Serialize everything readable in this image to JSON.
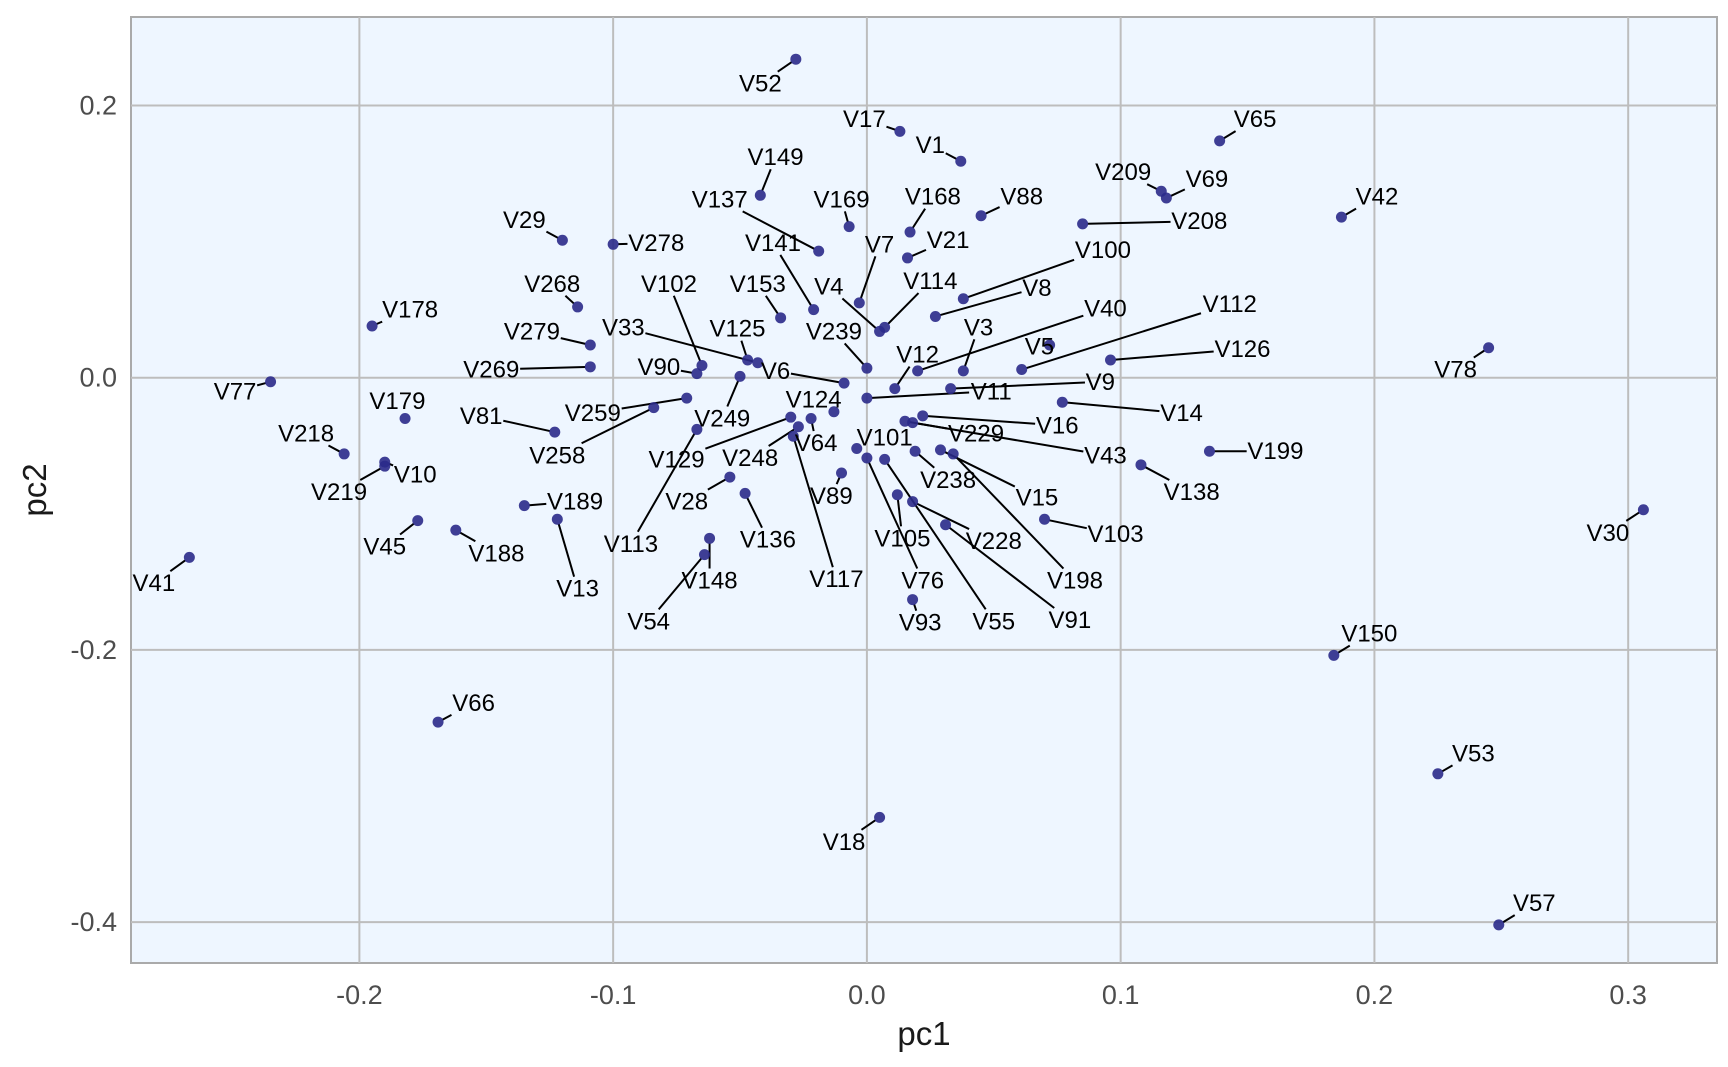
{
  "chart_data": {
    "type": "scatter",
    "xlabel": "pc1",
    "ylabel": "pc2",
    "xlim": [
      -0.29,
      0.335
    ],
    "ylim": [
      -0.43,
      0.265
    ],
    "xticks": [
      -0.2,
      -0.1,
      0.0,
      0.1,
      0.2,
      0.3
    ],
    "xtick_labels": [
      "-0.2",
      "-0.1",
      "0.0",
      "0.1",
      "0.2",
      "0.3"
    ],
    "yticks": [
      -0.4,
      -0.2,
      0.0,
      0.2
    ],
    "ytick_labels": [
      "-0.4",
      "-0.2",
      "0.0",
      "0.2"
    ],
    "grid": true,
    "colors": {
      "panel": "#eef6ff",
      "point": "#2a2a8a",
      "grid": "#bdbdbd",
      "border": "#aaaaaa",
      "leader": "#000000"
    },
    "points": [
      {
        "label": "V52",
        "x": -0.028,
        "y": 0.234,
        "lx": -0.042,
        "ly": 0.216
      },
      {
        "label": "V17",
        "x": 0.013,
        "y": 0.181,
        "lx": -0.001,
        "ly": 0.19
      },
      {
        "label": "V1",
        "x": 0.037,
        "y": 0.159,
        "lx": 0.025,
        "ly": 0.171
      },
      {
        "label": "V65",
        "x": 0.139,
        "y": 0.174,
        "lx": 0.153,
        "ly": 0.19
      },
      {
        "label": "V149",
        "x": -0.042,
        "y": 0.134,
        "lx": -0.036,
        "ly": 0.162
      },
      {
        "label": "V137",
        "x": -0.019,
        "y": 0.093,
        "lx": -0.058,
        "ly": 0.131
      },
      {
        "label": "V169",
        "x": -0.007,
        "y": 0.111,
        "lx": -0.01,
        "ly": 0.131
      },
      {
        "label": "V168",
        "x": 0.017,
        "y": 0.107,
        "lx": 0.026,
        "ly": 0.133
      },
      {
        "label": "V88",
        "x": 0.045,
        "y": 0.119,
        "lx": 0.061,
        "ly": 0.133
      },
      {
        "label": "V209",
        "x": 0.116,
        "y": 0.137,
        "lx": 0.101,
        "ly": 0.151
      },
      {
        "label": "V69",
        "x": 0.118,
        "y": 0.132,
        "lx": 0.134,
        "ly": 0.146
      },
      {
        "label": "V42",
        "x": 0.187,
        "y": 0.118,
        "lx": 0.201,
        "ly": 0.133
      },
      {
        "label": "V208",
        "x": 0.085,
        "y": 0.113,
        "lx": 0.131,
        "ly": 0.115
      },
      {
        "label": "V29",
        "x": -0.12,
        "y": 0.101,
        "lx": -0.135,
        "ly": 0.116
      },
      {
        "label": "V278",
        "x": -0.1,
        "y": 0.098,
        "lx": -0.083,
        "ly": 0.099
      },
      {
        "label": "V21",
        "x": 0.016,
        "y": 0.088,
        "lx": 0.032,
        "ly": 0.101
      },
      {
        "label": "V141",
        "x": -0.021,
        "y": 0.05,
        "lx": -0.037,
        "ly": 0.099
      },
      {
        "label": "V7",
        "x": -0.003,
        "y": 0.055,
        "lx": 0.005,
        "ly": 0.098
      },
      {
        "label": "V100",
        "x": 0.038,
        "y": 0.058,
        "lx": 0.093,
        "ly": 0.094
      },
      {
        "label": "V114",
        "x": 0.007,
        "y": 0.037,
        "lx": 0.025,
        "ly": 0.071
      },
      {
        "label": "V268",
        "x": -0.114,
        "y": 0.052,
        "lx": -0.124,
        "ly": 0.069
      },
      {
        "label": "V102",
        "x": -0.065,
        "y": 0.009,
        "lx": -0.078,
        "ly": 0.069
      },
      {
        "label": "V153",
        "x": -0.034,
        "y": 0.044,
        "lx": -0.043,
        "ly": 0.069
      },
      {
        "label": "V4",
        "x": 0.005,
        "y": 0.034,
        "lx": -0.015,
        "ly": 0.067
      },
      {
        "label": "V8",
        "x": 0.027,
        "y": 0.045,
        "lx": 0.067,
        "ly": 0.066
      },
      {
        "label": "V178",
        "x": -0.195,
        "y": 0.038,
        "lx": -0.18,
        "ly": 0.05
      },
      {
        "label": "V40",
        "x": 0.02,
        "y": 0.005,
        "lx": 0.094,
        "ly": 0.051
      },
      {
        "label": "V112",
        "x": 0.061,
        "y": 0.006,
        "lx": 0.143,
        "ly": 0.054
      },
      {
        "label": "V279",
        "x": -0.109,
        "y": 0.024,
        "lx": -0.132,
        "ly": 0.034
      },
      {
        "label": "V33",
        "x": -0.043,
        "y": 0.011,
        "lx": -0.096,
        "ly": 0.037
      },
      {
        "label": "V125",
        "x": -0.047,
        "y": 0.013,
        "lx": -0.051,
        "ly": 0.036
      },
      {
        "label": "V239",
        "x": 0.0,
        "y": 0.007,
        "lx": -0.013,
        "ly": 0.034
      },
      {
        "label": "V3",
        "x": 0.038,
        "y": 0.005,
        "lx": 0.044,
        "ly": 0.037
      },
      {
        "label": "V126",
        "x": 0.096,
        "y": 0.013,
        "lx": 0.148,
        "ly": 0.021
      },
      {
        "label": "V78",
        "x": 0.245,
        "y": 0.022,
        "lx": 0.232,
        "ly": 0.006
      },
      {
        "label": "V5",
        "x": 0.072,
        "y": 0.024,
        "lx": 0.068,
        "ly": 0.023
      },
      {
        "label": "V12",
        "x": 0.011,
        "y": -0.008,
        "lx": 0.02,
        "ly": 0.017
      },
      {
        "label": "V269",
        "x": -0.109,
        "y": 0.008,
        "lx": -0.148,
        "ly": 0.006
      },
      {
        "label": "V90",
        "x": -0.067,
        "y": 0.003,
        "lx": -0.082,
        "ly": 0.008
      },
      {
        "label": "V6",
        "x": -0.009,
        "y": -0.004,
        "lx": -0.036,
        "ly": 0.005
      },
      {
        "label": "V77",
        "x": -0.235,
        "y": -0.003,
        "lx": -0.249,
        "ly": -0.01
      },
      {
        "label": "V9",
        "x": 0.033,
        "y": -0.008,
        "lx": 0.092,
        "ly": -0.003
      },
      {
        "label": "V11",
        "x": 0.0,
        "y": -0.015,
        "lx": 0.049,
        "ly": -0.01
      },
      {
        "label": "V179",
        "x": -0.182,
        "y": -0.03,
        "lx": -0.185,
        "ly": -0.017
      },
      {
        "label": "V259",
        "x": -0.071,
        "y": -0.015,
        "lx": -0.108,
        "ly": -0.026
      },
      {
        "label": "V124",
        "x": -0.013,
        "y": -0.025,
        "lx": -0.021,
        "ly": -0.016
      },
      {
        "label": "V81",
        "x": -0.123,
        "y": -0.04,
        "lx": -0.152,
        "ly": -0.028
      },
      {
        "label": "V14",
        "x": 0.077,
        "y": -0.018,
        "lx": 0.124,
        "ly": -0.026
      },
      {
        "label": "V249",
        "x": -0.05,
        "y": 0.001,
        "lx": -0.057,
        "ly": -0.03
      },
      {
        "label": "V16",
        "x": 0.022,
        "y": -0.028,
        "lx": 0.075,
        "ly": -0.035
      },
      {
        "label": "V229",
        "x": 0.015,
        "y": -0.032,
        "lx": 0.043,
        "ly": -0.041
      },
      {
        "label": "V218",
        "x": -0.206,
        "y": -0.056,
        "lx": -0.221,
        "ly": -0.041
      },
      {
        "label": "V258",
        "x": -0.084,
        "y": -0.022,
        "lx": -0.122,
        "ly": -0.057
      },
      {
        "label": "V101",
        "x": -0.004,
        "y": -0.052,
        "lx": 0.007,
        "ly": -0.044
      },
      {
        "label": "V64",
        "x": -0.022,
        "y": -0.03,
        "lx": -0.02,
        "ly": -0.048
      },
      {
        "label": "V199",
        "x": 0.135,
        "y": -0.054,
        "lx": 0.161,
        "ly": -0.054
      },
      {
        "label": "V129",
        "x": -0.03,
        "y": -0.029,
        "lx": -0.075,
        "ly": -0.06
      },
      {
        "label": "V248",
        "x": -0.027,
        "y": -0.036,
        "lx": -0.046,
        "ly": -0.059
      },
      {
        "label": "V43",
        "x": 0.018,
        "y": -0.033,
        "lx": 0.094,
        "ly": -0.057
      },
      {
        "label": "V138",
        "x": 0.108,
        "y": -0.064,
        "lx": 0.128,
        "ly": -0.084
      },
      {
        "label": "V10",
        "x": -0.19,
        "y": -0.062,
        "lx": -0.178,
        "ly": -0.071
      },
      {
        "label": "V238",
        "x": 0.019,
        "y": -0.054,
        "lx": 0.032,
        "ly": -0.075
      },
      {
        "label": "V219",
        "x": -0.19,
        "y": -0.065,
        "lx": -0.208,
        "ly": -0.084
      },
      {
        "label": "V15",
        "x": 0.029,
        "y": -0.053,
        "lx": 0.067,
        "ly": -0.088
      },
      {
        "label": "V89",
        "x": -0.01,
        "y": -0.07,
        "lx": -0.014,
        "ly": -0.087
      },
      {
        "label": "V28",
        "x": -0.054,
        "y": -0.073,
        "lx": -0.071,
        "ly": -0.091
      },
      {
        "label": "V189",
        "x": -0.135,
        "y": -0.094,
        "lx": -0.115,
        "ly": -0.091
      },
      {
        "label": "V105",
        "x": 0.012,
        "y": -0.086,
        "lx": 0.014,
        "ly": -0.118
      },
      {
        "label": "V228",
        "x": 0.018,
        "y": -0.091,
        "lx": 0.05,
        "ly": -0.12
      },
      {
        "label": "V103",
        "x": 0.07,
        "y": -0.104,
        "lx": 0.098,
        "ly": -0.115
      },
      {
        "label": "V45",
        "x": -0.177,
        "y": -0.105,
        "lx": -0.19,
        "ly": -0.124
      },
      {
        "label": "V188",
        "x": -0.162,
        "y": -0.112,
        "lx": -0.146,
        "ly": -0.129
      },
      {
        "label": "V136",
        "x": -0.048,
        "y": -0.085,
        "lx": -0.039,
        "ly": -0.119
      },
      {
        "label": "V113",
        "x": -0.067,
        "y": -0.038,
        "lx": -0.093,
        "ly": -0.122
      },
      {
        "label": "V148",
        "x": -0.062,
        "y": -0.118,
        "lx": -0.062,
        "ly": -0.149
      },
      {
        "label": "V117",
        "x": -0.029,
        "y": -0.043,
        "lx": -0.012,
        "ly": -0.148
      },
      {
        "label": "V76",
        "x": 0.0,
        "y": -0.059,
        "lx": 0.022,
        "ly": -0.149
      },
      {
        "label": "V198",
        "x": 0.034,
        "y": -0.056,
        "lx": 0.082,
        "ly": -0.149
      },
      {
        "label": "V41",
        "x": -0.267,
        "y": -0.132,
        "lx": -0.281,
        "ly": -0.151
      },
      {
        "label": "V13",
        "x": -0.122,
        "y": -0.104,
        "lx": -0.114,
        "ly": -0.155
      },
      {
        "label": "V54",
        "x": -0.064,
        "y": -0.13,
        "lx": -0.086,
        "ly": -0.179
      },
      {
        "label": "V93",
        "x": 0.018,
        "y": -0.163,
        "lx": 0.021,
        "ly": -0.18
      },
      {
        "label": "V55",
        "x": 0.007,
        "y": -0.06,
        "lx": 0.05,
        "ly": -0.179
      },
      {
        "label": "V91",
        "x": 0.031,
        "y": -0.108,
        "lx": 0.08,
        "ly": -0.178
      },
      {
        "label": "V30",
        "x": 0.306,
        "y": -0.097,
        "lx": 0.292,
        "ly": -0.114
      },
      {
        "label": "V150",
        "x": 0.184,
        "y": -0.204,
        "lx": 0.198,
        "ly": -0.188
      },
      {
        "label": "V66",
        "x": -0.169,
        "y": -0.253,
        "lx": -0.155,
        "ly": -0.239
      },
      {
        "label": "V53",
        "x": 0.225,
        "y": -0.291,
        "lx": 0.239,
        "ly": -0.276
      },
      {
        "label": "V18",
        "x": 0.005,
        "y": -0.323,
        "lx": -0.009,
        "ly": -0.341
      },
      {
        "label": "V57",
        "x": 0.249,
        "y": -0.402,
        "lx": 0.263,
        "ly": -0.386
      }
    ]
  }
}
